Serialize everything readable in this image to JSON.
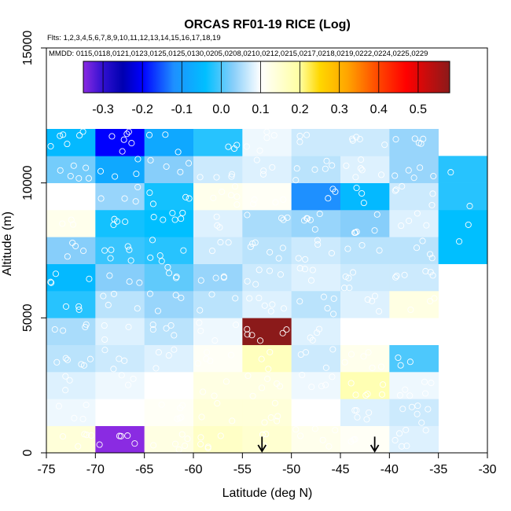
{
  "chart_data": {
    "type": "heatmap",
    "title": "ORCAS RF01-19 RICE (Log)",
    "flights_note": "Flts: 1,2,3,4,5,6,7,8,9,10,11,12,13,14,15,16,17,18,19",
    "dates_note": "MMDD: 0115,0118,0121,0123,0125,0125,0130,0205,0208,0210,0212,0215,0217,0218,0219,0222,0224,0225,0229",
    "xlabel": "Latitude (deg N)",
    "ylabel": "Altitude (m)",
    "xlim": [
      -75,
      -30
    ],
    "ylim": [
      0,
      15000
    ],
    "x_ticks": [
      -75,
      -70,
      -65,
      -60,
      -55,
      -50,
      -45,
      -40,
      -35,
      -30
    ],
    "x_tick_labels": [
      "-75",
      "-70",
      "-65",
      "-60",
      "-55",
      "-50",
      "-45",
      "-40",
      "-35",
      "-30"
    ],
    "y_ticks": [
      0,
      5000,
      10000,
      15000
    ],
    "y_tick_labels": [
      "0",
      "5000",
      "10000",
      "15000"
    ],
    "colorbar": {
      "min": -0.35,
      "max": 0.58,
      "ticks": [
        -0.3,
        -0.2,
        -0.1,
        0.0,
        0.1,
        0.2,
        0.3,
        0.4,
        0.5
      ],
      "tick_labels": [
        "-0.3",
        "-0.2",
        "-0.1",
        "0.0",
        "0.1",
        "0.2",
        "0.3",
        "0.4",
        "0.5"
      ],
      "stops": [
        {
          "v": -0.35,
          "c": "#8a2be2"
        },
        {
          "v": -0.3,
          "c": "#3010d0"
        },
        {
          "v": -0.25,
          "c": "#0000b0"
        },
        {
          "v": -0.2,
          "c": "#0000ff"
        },
        {
          "v": -0.12,
          "c": "#1e90ff"
        },
        {
          "v": -0.04,
          "c": "#00bfff"
        },
        {
          "v": 0.03,
          "c": "#87cefa"
        },
        {
          "v": 0.1,
          "c": "#ffffff"
        },
        {
          "v": 0.2,
          "c": "#ffffa0"
        },
        {
          "v": 0.25,
          "c": "#ffd700"
        },
        {
          "v": 0.32,
          "c": "#ffa500"
        },
        {
          "v": 0.4,
          "c": "#ff4500"
        },
        {
          "v": 0.47,
          "c": "#ff0000"
        },
        {
          "v": 0.58,
          "c": "#8b1a1a"
        }
      ]
    },
    "bin_width_deg": 5,
    "bin_height_m": 1000,
    "columns": [
      {
        "lat": -75,
        "values": [
          0.14,
          0.09,
          0.08,
          0.06,
          0.05,
          -0.02,
          -0.05,
          0.03,
          0.12,
          0.1,
          0.02,
          -0.05
        ]
      },
      {
        "lat": -70,
        "values": [
          -0.35,
          0.1,
          0.09,
          0.07,
          0.08,
          0.06,
          0.03,
          -0.01,
          -0.03,
          0.04,
          -0.08,
          -0.2
        ]
      },
      {
        "lat": -65,
        "values": [
          0.13,
          0.11,
          0.1,
          0.08,
          0.06,
          0.04,
          0.01,
          -0.02,
          -0.04,
          -0.03,
          0.03,
          -0.08
        ]
      },
      {
        "lat": -60,
        "values": [
          0.16,
          0.14,
          0.13,
          0.11,
          0.09,
          0.06,
          0.04,
          0.07,
          0.08,
          0.12,
          0.07,
          -0.02
        ]
      },
      {
        "lat": -55,
        "values": [
          0.15,
          0.14,
          0.13,
          0.17,
          0.58,
          0.08,
          0.07,
          0.06,
          0.05,
          0.11,
          0.08,
          0.09
        ]
      },
      {
        "lat": -50,
        "values": [
          0.12,
          0.1,
          0.09,
          0.07,
          0.08,
          0.06,
          0.08,
          0.07,
          0.04,
          -0.12,
          0.06,
          0.07
        ]
      },
      {
        "lat": -45,
        "values": [
          0.11,
          0.08,
          0.18,
          0.12,
          0.1,
          0.08,
          0.07,
          0.06,
          0.03,
          -0.05,
          0.08,
          0.07
        ]
      },
      {
        "lat": -40,
        "values": [
          0.08,
          0.07,
          0.09,
          0.0,
          0.1,
          0.13,
          0.07,
          0.06,
          0.08,
          0.07,
          0.04,
          0.04
        ]
      },
      {
        "lat": -35,
        "values": [
          null,
          null,
          null,
          null,
          null,
          null,
          null,
          -0.04,
          -0.04,
          -0.02,
          -0.02,
          null
        ]
      }
    ],
    "sample_markers": [
      {
        "lat": -53.0,
        "alt": 600
      },
      {
        "lat": -41.5,
        "alt": 600
      }
    ],
    "grid": false,
    "point_color": "#ffffff",
    "arrow_color": "#000000"
  }
}
